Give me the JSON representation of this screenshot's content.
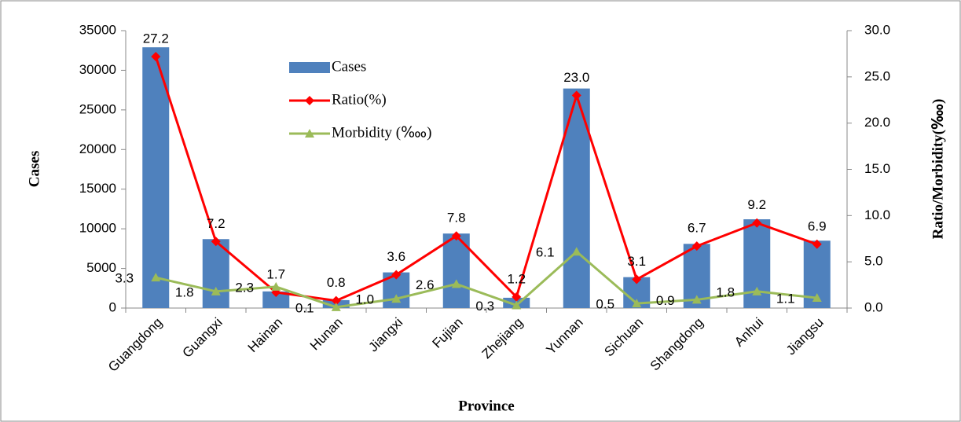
{
  "chart_data": {
    "type": "bar-line",
    "xlabel": "Province",
    "ylabel": "Cases",
    "y2label": "Ratio/Morbidity(‱)",
    "categories": [
      "Guangdong",
      "Guangxi",
      "Hainan",
      "Hunan",
      "Jiangxi",
      "Fujian",
      "Zhejiang",
      "Yunnan",
      "Sichuan",
      "Shangdong",
      "Anhui",
      "Jiangsu"
    ],
    "series": [
      {
        "name": "Cases",
        "type": "bar",
        "color": "#4f81bd",
        "values": [
          32900,
          8700,
          2100,
          1000,
          4500,
          9400,
          1300,
          27700,
          3900,
          8100,
          11200,
          8500
        ]
      },
      {
        "name": "Ratio(%)",
        "type": "line",
        "axis": "y2",
        "marker": "diamond",
        "color": "#ff0000",
        "values": [
          27.2,
          7.2,
          1.7,
          0.8,
          3.6,
          7.8,
          1.2,
          23.0,
          3.1,
          6.7,
          9.2,
          6.9
        ],
        "value_labels": [
          "27.2",
          "7.2",
          "1.7",
          "0.8",
          "3.6",
          "7.8",
          "1.2",
          "23.0",
          "3.1",
          "6.7",
          "9.2",
          "6.9"
        ]
      },
      {
        "name": "Morbidity (‱)",
        "type": "line",
        "axis": "y2",
        "marker": "triangle",
        "color": "#9bbb59",
        "values": [
          3.3,
          1.8,
          2.3,
          0.1,
          1.0,
          2.6,
          0.3,
          6.1,
          0.5,
          0.9,
          1.8,
          1.1
        ],
        "value_labels": [
          "3.3",
          "1.8",
          "2.3",
          "0.1",
          "1.0",
          "2.6",
          "0.3",
          "6.1",
          "0.5",
          "0.9",
          "1.8",
          "1.1"
        ]
      }
    ],
    "ylim": [
      0,
      35000
    ],
    "yticks": [
      0,
      5000,
      10000,
      15000,
      20000,
      25000,
      30000,
      35000
    ],
    "y2lim": [
      0,
      30
    ],
    "y2ticks": [
      {
        "value": 0,
        "label": "0.0"
      },
      {
        "value": 5,
        "label": "5.0"
      },
      {
        "value": 10,
        "label": "10.0"
      },
      {
        "value": 15,
        "label": "15.0"
      },
      {
        "value": 20,
        "label": "20.0"
      },
      {
        "value": 25,
        "label": "25.0"
      },
      {
        "value": 30,
        "label": "30.0"
      }
    ],
    "grid": false
  }
}
